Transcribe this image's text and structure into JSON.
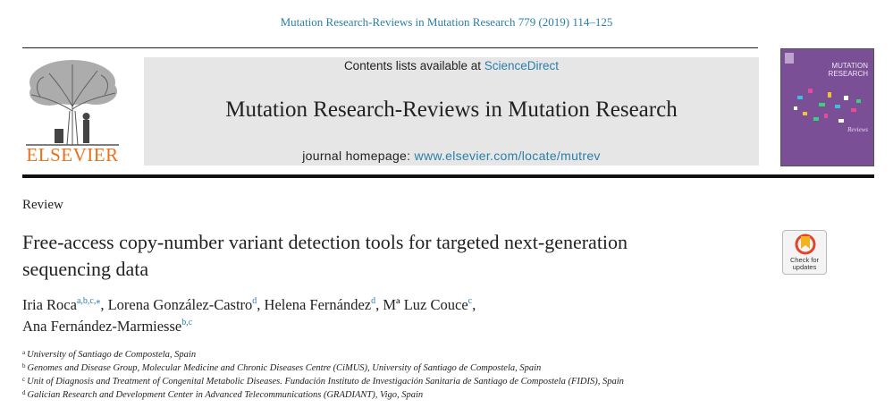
{
  "header": {
    "journal_reference": "Mutation Research-Reviews in Mutation Research 779 (2019) 114–125"
  },
  "publisher": {
    "logo_word": "ELSEVIER",
    "logo_color": "#e9711c"
  },
  "banner": {
    "contents_prefix": "Contents lists available at ",
    "contents_link": "ScienceDirect",
    "journal_title": "Mutation Research-Reviews in Mutation Research",
    "homepage_prefix": "journal homepage: ",
    "homepage_link": "www.elsevier.com/locate/mutrev"
  },
  "cover": {
    "line1": "MUTATION",
    "line2": "RESEARCH",
    "subtitle": "Reviews",
    "color": "#7b4f96"
  },
  "article": {
    "type": "Review",
    "title": "Free-access copy-number variant detection tools for targeted next-generation sequencing data",
    "check_label_1": "Check for",
    "check_label_2": "updates",
    "authors": [
      {
        "name": "Iria Roca",
        "sup": "a,b,c,",
        "mark": "⁎",
        "sep": ", "
      },
      {
        "name": "Lorena González-Castro",
        "sup": "d",
        "mark": "",
        "sep": ", "
      },
      {
        "name": "Helena Fernández",
        "sup": "d",
        "mark": "",
        "sep": ", "
      },
      {
        "name": "Mª Luz Couce",
        "sup": "c",
        "mark": "",
        "sep": ","
      },
      {
        "name": "Ana Fernández-Marmiesse",
        "sup": "b,c",
        "mark": "",
        "sep": ""
      }
    ],
    "affiliations": [
      {
        "key": "a",
        "text": "University of Santiago de Compostela, Spain"
      },
      {
        "key": "b",
        "text": "Genomes and Disease Group, Molecular Medicine and Chronic Diseases Centre (CiMUS), University of Santiago de Compostela, Spain"
      },
      {
        "key": "c",
        "text": "Unit of Diagnosis and Treatment of Congenital Metabolic Diseases. Fundación Instituto de Investigación Sanitaria de Santiago de Compostela (FIDIS), Spain"
      },
      {
        "key": "d",
        "text": "Galician Research and Development Center in Advanced Telecommunications (GRADIANT), Vigo, Spain"
      }
    ]
  },
  "colors": {
    "link": "#2a7fa8",
    "banner_bg": "#e6e6e6"
  }
}
